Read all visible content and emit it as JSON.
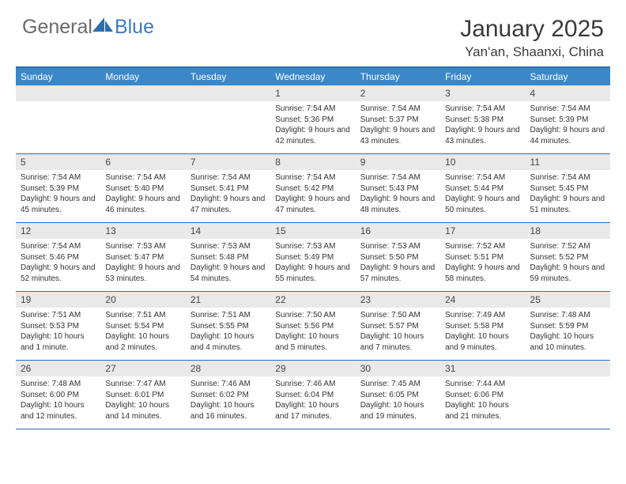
{
  "brand": {
    "general": "General",
    "blue": "Blue"
  },
  "title": {
    "month": "January 2025",
    "location": "Yan'an, Shaanxi, China"
  },
  "colors": {
    "header_bg": "#3b87c8",
    "rule": "#2f6fb0",
    "daynum_bg": "#e9e9e9",
    "text": "#333333",
    "logo_gray": "#6a6a6a",
    "logo_blue": "#3b7bbf"
  },
  "weekdays": [
    "Sunday",
    "Monday",
    "Tuesday",
    "Wednesday",
    "Thursday",
    "Friday",
    "Saturday"
  ],
  "weeks": [
    [
      {
        "day": null
      },
      {
        "day": null
      },
      {
        "day": null
      },
      {
        "day": 1,
        "sunrise": "7:54 AM",
        "sunset": "5:36 PM",
        "daylight": "9 hours and 42 minutes."
      },
      {
        "day": 2,
        "sunrise": "7:54 AM",
        "sunset": "5:37 PM",
        "daylight": "9 hours and 43 minutes."
      },
      {
        "day": 3,
        "sunrise": "7:54 AM",
        "sunset": "5:38 PM",
        "daylight": "9 hours and 43 minutes."
      },
      {
        "day": 4,
        "sunrise": "7:54 AM",
        "sunset": "5:39 PM",
        "daylight": "9 hours and 44 minutes."
      }
    ],
    [
      {
        "day": 5,
        "sunrise": "7:54 AM",
        "sunset": "5:39 PM",
        "daylight": "9 hours and 45 minutes."
      },
      {
        "day": 6,
        "sunrise": "7:54 AM",
        "sunset": "5:40 PM",
        "daylight": "9 hours and 46 minutes."
      },
      {
        "day": 7,
        "sunrise": "7:54 AM",
        "sunset": "5:41 PM",
        "daylight": "9 hours and 47 minutes."
      },
      {
        "day": 8,
        "sunrise": "7:54 AM",
        "sunset": "5:42 PM",
        "daylight": "9 hours and 47 minutes."
      },
      {
        "day": 9,
        "sunrise": "7:54 AM",
        "sunset": "5:43 PM",
        "daylight": "9 hours and 48 minutes."
      },
      {
        "day": 10,
        "sunrise": "7:54 AM",
        "sunset": "5:44 PM",
        "daylight": "9 hours and 50 minutes."
      },
      {
        "day": 11,
        "sunrise": "7:54 AM",
        "sunset": "5:45 PM",
        "daylight": "9 hours and 51 minutes."
      }
    ],
    [
      {
        "day": 12,
        "sunrise": "7:54 AM",
        "sunset": "5:46 PM",
        "daylight": "9 hours and 52 minutes."
      },
      {
        "day": 13,
        "sunrise": "7:53 AM",
        "sunset": "5:47 PM",
        "daylight": "9 hours and 53 minutes."
      },
      {
        "day": 14,
        "sunrise": "7:53 AM",
        "sunset": "5:48 PM",
        "daylight": "9 hours and 54 minutes."
      },
      {
        "day": 15,
        "sunrise": "7:53 AM",
        "sunset": "5:49 PM",
        "daylight": "9 hours and 55 minutes."
      },
      {
        "day": 16,
        "sunrise": "7:53 AM",
        "sunset": "5:50 PM",
        "daylight": "9 hours and 57 minutes."
      },
      {
        "day": 17,
        "sunrise": "7:52 AM",
        "sunset": "5:51 PM",
        "daylight": "9 hours and 58 minutes."
      },
      {
        "day": 18,
        "sunrise": "7:52 AM",
        "sunset": "5:52 PM",
        "daylight": "9 hours and 59 minutes."
      }
    ],
    [
      {
        "day": 19,
        "sunrise": "7:51 AM",
        "sunset": "5:53 PM",
        "daylight": "10 hours and 1 minute."
      },
      {
        "day": 20,
        "sunrise": "7:51 AM",
        "sunset": "5:54 PM",
        "daylight": "10 hours and 2 minutes."
      },
      {
        "day": 21,
        "sunrise": "7:51 AM",
        "sunset": "5:55 PM",
        "daylight": "10 hours and 4 minutes."
      },
      {
        "day": 22,
        "sunrise": "7:50 AM",
        "sunset": "5:56 PM",
        "daylight": "10 hours and 5 minutes."
      },
      {
        "day": 23,
        "sunrise": "7:50 AM",
        "sunset": "5:57 PM",
        "daylight": "10 hours and 7 minutes."
      },
      {
        "day": 24,
        "sunrise": "7:49 AM",
        "sunset": "5:58 PM",
        "daylight": "10 hours and 9 minutes."
      },
      {
        "day": 25,
        "sunrise": "7:48 AM",
        "sunset": "5:59 PM",
        "daylight": "10 hours and 10 minutes."
      }
    ],
    [
      {
        "day": 26,
        "sunrise": "7:48 AM",
        "sunset": "6:00 PM",
        "daylight": "10 hours and 12 minutes."
      },
      {
        "day": 27,
        "sunrise": "7:47 AM",
        "sunset": "6:01 PM",
        "daylight": "10 hours and 14 minutes."
      },
      {
        "day": 28,
        "sunrise": "7:46 AM",
        "sunset": "6:02 PM",
        "daylight": "10 hours and 16 minutes."
      },
      {
        "day": 29,
        "sunrise": "7:46 AM",
        "sunset": "6:04 PM",
        "daylight": "10 hours and 17 minutes."
      },
      {
        "day": 30,
        "sunrise": "7:45 AM",
        "sunset": "6:05 PM",
        "daylight": "10 hours and 19 minutes."
      },
      {
        "day": 31,
        "sunrise": "7:44 AM",
        "sunset": "6:06 PM",
        "daylight": "10 hours and 21 minutes."
      },
      {
        "day": null
      }
    ]
  ],
  "labels": {
    "sunrise": "Sunrise:",
    "sunset": "Sunset:",
    "daylight": "Daylight:"
  }
}
